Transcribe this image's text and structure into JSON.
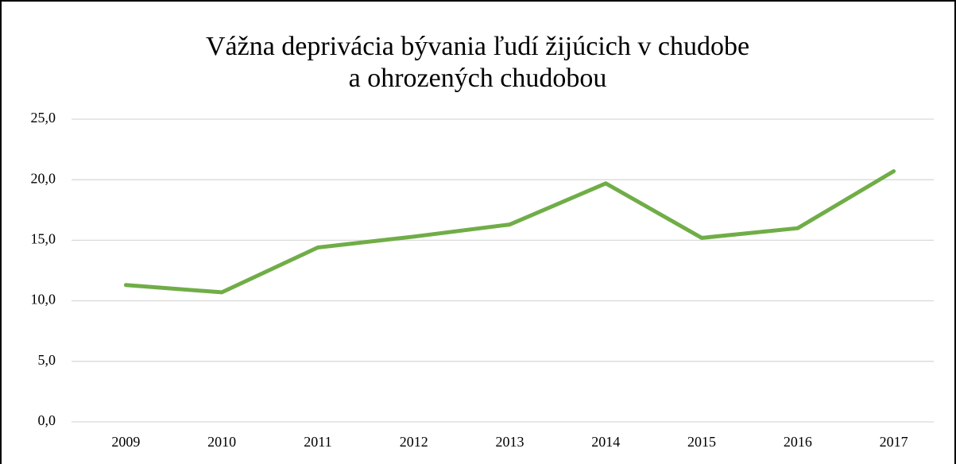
{
  "chart_data": {
    "type": "line",
    "title": [
      "Vážna deprivácia bývania ľudí žijúcich v chudobe",
      "a ohrozených chudobou"
    ],
    "categories": [
      "2009",
      "2010",
      "2011",
      "2012",
      "2013",
      "2014",
      "2015",
      "2016",
      "2017"
    ],
    "values": [
      11.3,
      10.7,
      14.4,
      15.3,
      16.3,
      19.7,
      15.2,
      16.0,
      20.7
    ],
    "color": "#70ad47",
    "ylim": [
      0,
      25
    ],
    "yticks": [
      {
        "value": 0,
        "label": "0,0"
      },
      {
        "value": 5,
        "label": "5,0"
      },
      {
        "value": 10,
        "label": "10,0"
      },
      {
        "value": 15,
        "label": "15,0"
      },
      {
        "value": 20,
        "label": "20,0"
      },
      {
        "value": 25,
        "label": "25,0"
      }
    ],
    "grid": true
  }
}
